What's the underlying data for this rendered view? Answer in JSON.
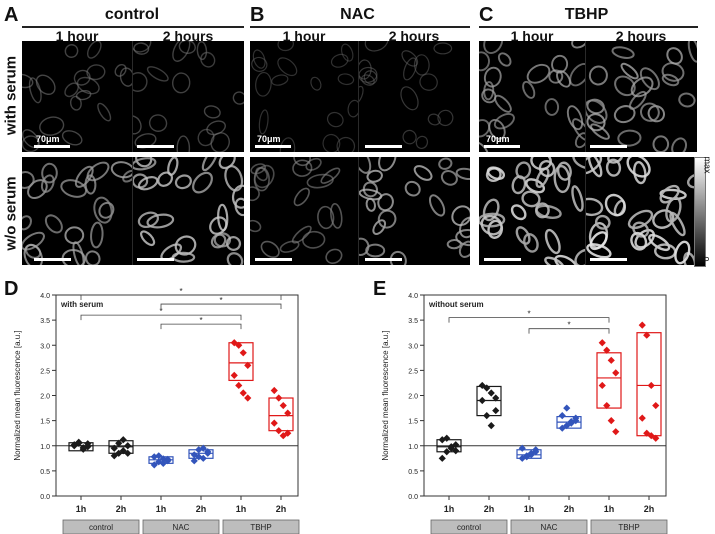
{
  "panels": {
    "A": {
      "letter": "A",
      "title": "control"
    },
    "B": {
      "letter": "B",
      "title": "NAC"
    },
    "C": {
      "letter": "C",
      "title": "TBHP"
    }
  },
  "time_labels": [
    "1 hour",
    "2 hours"
  ],
  "row_labels": {
    "top": "with serum",
    "bottom": "w/o serum"
  },
  "scale_text": "70μm",
  "colorbar": {
    "max_label": "max",
    "min_label": "0"
  },
  "colors": {
    "control": "#1a1a1a",
    "nac": "#3355bb",
    "tbhp": "#e01818"
  },
  "chart_data": [
    {
      "panel": "D",
      "type": "box-scatter",
      "title": "with serum",
      "ylabel": "Normalized mean fluorescence [a.u.]",
      "ylim": [
        0,
        4.0
      ],
      "yticks": [
        "0.0",
        "0.5",
        "1.0",
        "1.5",
        "2.0",
        "2.5",
        "3.0",
        "3.5",
        "4.0"
      ],
      "reference_line": 1.0,
      "categories": [
        "1h",
        "2h",
        "1h",
        "2h",
        "1h",
        "2h"
      ],
      "groups": [
        "control",
        "NAC",
        "TBHP"
      ],
      "significance": [
        "*",
        "*",
        "*",
        "*"
      ],
      "series": [
        {
          "name": "control 1h",
          "group": "control",
          "box": [
            0.9,
            1.0,
            1.06
          ],
          "points": [
            1.0,
            1.05,
            0.93,
            0.98,
            1.02,
            1.07,
            0.96,
            1.04
          ]
        },
        {
          "name": "control 2h",
          "group": "control",
          "box": [
            0.85,
            0.98,
            1.1
          ],
          "points": [
            0.8,
            0.85,
            1.12,
            1.0,
            0.95,
            1.05,
            0.9,
            0.85
          ]
        },
        {
          "name": "NAC 1h",
          "group": "nac",
          "box": [
            0.65,
            0.72,
            0.78
          ],
          "points": [
            0.62,
            0.68,
            0.74,
            0.7,
            0.78,
            0.8,
            0.65,
            0.73
          ]
        },
        {
          "name": "NAC 2h",
          "group": "nac",
          "box": [
            0.75,
            0.85,
            0.92
          ],
          "points": [
            0.7,
            0.78,
            0.95,
            0.88,
            0.82,
            0.92,
            0.75,
            0.85
          ]
        },
        {
          "name": "TBHP 1h",
          "group": "tbhp",
          "box": [
            2.3,
            2.65,
            3.05
          ],
          "points": [
            3.05,
            3.0,
            2.85,
            2.6,
            2.4,
            2.2,
            2.05,
            1.95
          ]
        },
        {
          "name": "TBHP 2h",
          "group": "tbhp",
          "box": [
            1.3,
            1.6,
            1.95
          ],
          "points": [
            2.1,
            1.95,
            1.8,
            1.65,
            1.45,
            1.3,
            1.2,
            1.25
          ]
        }
      ]
    },
    {
      "panel": "E",
      "type": "box-scatter",
      "title": "without serum",
      "ylabel": "Normalized mean fluorescence [a.u.]",
      "ylim": [
        0,
        4.0
      ],
      "yticks": [
        "0.0",
        "0.5",
        "1.0",
        "1.5",
        "2.0",
        "2.5",
        "3.0",
        "3.5",
        "4.0"
      ],
      "reference_line": 1.0,
      "categories": [
        "1h",
        "2h",
        "1h",
        "2h",
        "1h",
        "2h"
      ],
      "groups": [
        "control",
        "NAC",
        "TBHP"
      ],
      "significance": [
        "*",
        "*"
      ],
      "series": [
        {
          "name": "control 1h",
          "group": "control",
          "box": [
            0.88,
            0.98,
            1.12
          ],
          "points": [
            0.75,
            0.88,
            0.98,
            1.02,
            1.12,
            1.15,
            0.95,
            0.9
          ]
        },
        {
          "name": "control 2h",
          "group": "control",
          "box": [
            1.6,
            1.9,
            2.18
          ],
          "points": [
            2.2,
            2.15,
            2.05,
            1.95,
            1.9,
            1.6,
            1.4,
            1.7
          ]
        },
        {
          "name": "NAC 1h",
          "group": "nac",
          "box": [
            0.75,
            0.82,
            0.92
          ],
          "points": [
            0.75,
            0.8,
            0.85,
            0.92,
            0.95,
            0.78,
            0.82,
            0.88
          ]
        },
        {
          "name": "NAC 2h",
          "group": "nac",
          "box": [
            1.35,
            1.47,
            1.58
          ],
          "points": [
            1.35,
            1.4,
            1.48,
            1.55,
            1.6,
            1.75,
            1.45,
            1.5
          ]
        },
        {
          "name": "TBHP 1h",
          "group": "tbhp",
          "box": [
            1.75,
            2.35,
            2.85
          ],
          "points": [
            3.05,
            2.9,
            2.7,
            2.45,
            2.2,
            1.8,
            1.5,
            1.28
          ]
        },
        {
          "name": "TBHP 2h",
          "group": "tbhp",
          "box": [
            1.2,
            2.2,
            3.25
          ],
          "points": [
            3.4,
            3.2,
            2.2,
            1.8,
            1.55,
            1.25,
            1.2,
            1.15
          ]
        }
      ]
    }
  ]
}
